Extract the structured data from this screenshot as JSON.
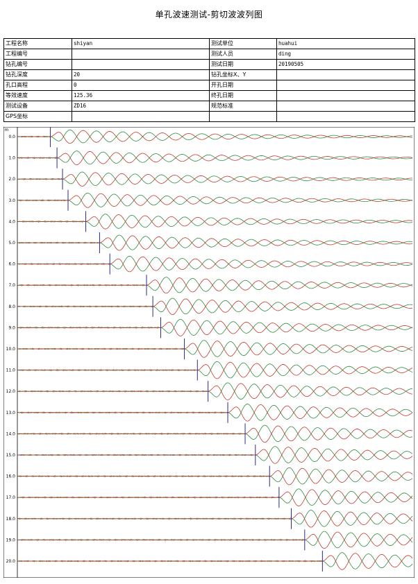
{
  "title": "单孔波速测试-剪切波波列图",
  "info_rows": [
    {
      "l1": "工程名称",
      "v1": "shiyan",
      "l2": "测试单位",
      "v2": "huahui"
    },
    {
      "l1": "工程编号",
      "v1": "",
      "l2": "测试人员",
      "v2": "ding"
    },
    {
      "l1": "钻孔编号",
      "v1": "",
      "l2": "测试日期",
      "v2": "20190505"
    },
    {
      "l1": "钻孔深度",
      "v1": "20",
      "l2": "钻孔坐标X、Y",
      "v2": ""
    },
    {
      "l1": "孔口高程",
      "v1": "0",
      "l2": "开孔日期",
      "v2": ""
    },
    {
      "l1": "等效速度",
      "v1": "125.36",
      "l2": "终孔日期",
      "v2": ""
    },
    {
      "l1": "测试设备",
      "v1": "ZD16",
      "l2": "规范标准",
      "v2": ""
    },
    {
      "l1": "GPS坐标",
      "v1": "",
      "l2": "",
      "v2": ""
    }
  ],
  "chart_data": {
    "type": "line",
    "y_axis_unit": "m",
    "depths": [
      "0.0",
      "1.0",
      "2.0",
      "3.0",
      "4.0",
      "5.0",
      "6.0",
      "7.0",
      "8.0",
      "9.0",
      "10.0",
      "11.0",
      "12.0",
      "13.0",
      "14.0",
      "15.0",
      "16.0",
      "17.0",
      "18.0",
      "19.0",
      "20.0"
    ],
    "first_arrival_fraction": [
      0.08,
      0.097,
      0.111,
      0.125,
      0.17,
      0.205,
      0.231,
      0.324,
      0.34,
      0.36,
      0.42,
      0.453,
      0.48,
      0.53,
      0.574,
      0.6,
      0.636,
      0.66,
      0.691,
      0.725,
      0.77
    ],
    "series": [
      {
        "color": "#c0392b"
      },
      {
        "color": "#2e8b3e"
      }
    ],
    "pick_color": "#2a2a8a"
  }
}
